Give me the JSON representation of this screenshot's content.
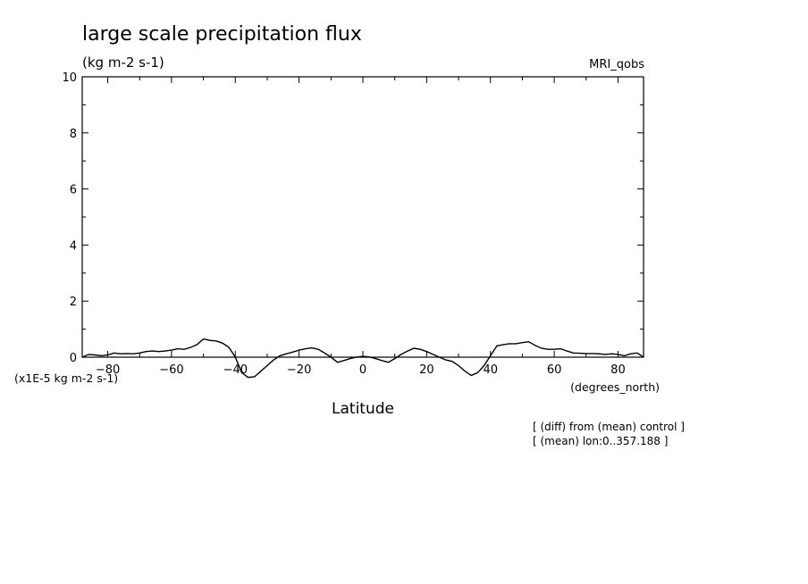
{
  "chart_data": {
    "type": "line",
    "title": "large scale precipitation flux",
    "units": "(kg m-2 s-1)",
    "model_label": "MRI_qobs",
    "scale_note": "(x1E-5 kg m-2 s-1)",
    "xlabel": "Latitude",
    "x_unit_label": "(degrees_north)",
    "notes": [
      "[ (diff) from (mean) control ]",
      "[ (mean) lon:0..357.188 ]"
    ],
    "xlim": [
      -88,
      88
    ],
    "ylim": [
      0,
      10
    ],
    "x_ticks": [
      -80,
      -60,
      -40,
      -20,
      0,
      20,
      40,
      60,
      80
    ],
    "y_ticks": [
      0,
      2,
      4,
      6,
      8,
      10
    ],
    "grid": false,
    "series": [
      {
        "x": [
          -88,
          -86,
          -84,
          -82,
          -80,
          -78,
          -76,
          -74,
          -72,
          -70,
          -68,
          -66,
          -64,
          -62,
          -60,
          -58,
          -56,
          -54,
          -52,
          -50,
          -48,
          -46,
          -44,
          -42,
          -40,
          -38,
          -36,
          -34,
          -32,
          -30,
          -28,
          -26,
          -24,
          -22,
          -20,
          -18,
          -16,
          -14,
          -12,
          -10,
          -8,
          -6,
          -4,
          -2,
          0,
          2,
          4,
          6,
          8,
          10,
          12,
          14,
          16,
          18,
          20,
          22,
          24,
          26,
          28,
          30,
          32,
          34,
          36,
          38,
          40,
          42,
          44,
          46,
          48,
          50,
          52,
          54,
          56,
          58,
          60,
          62,
          64,
          66,
          68,
          70,
          72,
          74,
          76,
          78,
          80,
          82,
          84,
          86,
          88
        ],
        "y": [
          0.0,
          0.1,
          0.08,
          0.05,
          0.08,
          0.15,
          0.12,
          0.13,
          0.12,
          0.15,
          0.2,
          0.22,
          0.2,
          0.22,
          0.25,
          0.3,
          0.28,
          0.35,
          0.45,
          0.65,
          0.6,
          0.58,
          0.5,
          0.35,
          0.0,
          -0.55,
          -0.72,
          -0.7,
          -0.5,
          -0.3,
          -0.1,
          0.05,
          0.12,
          0.18,
          0.25,
          0.3,
          0.33,
          0.28,
          0.15,
          0.0,
          -0.18,
          -0.12,
          -0.05,
          0.0,
          0.03,
          0.01,
          -0.05,
          -0.12,
          -0.18,
          -0.05,
          0.1,
          0.22,
          0.32,
          0.28,
          0.2,
          0.1,
          0.0,
          -0.1,
          -0.15,
          -0.3,
          -0.5,
          -0.65,
          -0.55,
          -0.3,
          0.05,
          0.4,
          0.45,
          0.48,
          0.48,
          0.52,
          0.55,
          0.42,
          0.32,
          0.28,
          0.28,
          0.3,
          0.22,
          0.15,
          0.14,
          0.13,
          0.13,
          0.12,
          0.1,
          0.12,
          0.1,
          0.05,
          0.12,
          0.15,
          0.0
        ]
      }
    ]
  }
}
